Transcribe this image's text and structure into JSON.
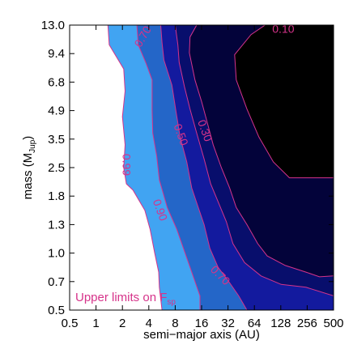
{
  "chart_data": {
    "type": "contour",
    "xlabel": "semi−major axis (AU)",
    "ylabel_main": "mass (M",
    "ylabel_sub": "Jup",
    "ylabel_end": ")",
    "x_ticks": [
      "0.5",
      "1",
      "2",
      "4",
      "8",
      "16",
      "32",
      "64",
      "128",
      "256",
      "500"
    ],
    "y_ticks": [
      "0.5",
      "0.7",
      "1.0",
      "1.3",
      "1.8",
      "2.5",
      "3.5",
      "4.9",
      "6.8",
      "9.4",
      "13.0"
    ],
    "annotation_main": "Upper limits on F",
    "annotation_sub": "sp",
    "colors": {
      "line": "#d6338a",
      "fill_099": "#41a4f2",
      "fill_090": "#2466c8",
      "fill_070": "#131a9e",
      "fill_050": "#080e6c",
      "fill_030": "#03033a",
      "fill_010": "#000000",
      "fill_low": "#ffffff"
    },
    "levels": [
      {
        "value": 0.99,
        "label": "0.99",
        "fill": "#41a4f2",
        "boundary": [
          [
            1.45,
            13.0
          ],
          [
            1.5,
            10.5
          ],
          [
            2.1,
            8.0
          ],
          [
            2.2,
            6.2
          ],
          [
            2.0,
            4.6
          ],
          [
            2.2,
            3.3
          ],
          [
            2.1,
            2.5
          ],
          [
            2.3,
            2.1
          ],
          [
            2.8,
            1.95
          ],
          [
            3.7,
            1.55
          ],
          [
            4.2,
            1.25
          ],
          [
            4.9,
            1.0
          ],
          [
            5.5,
            0.8
          ],
          [
            5.6,
            0.66
          ],
          [
            6.0,
            0.5
          ]
        ]
      },
      {
        "value": 0.9,
        "label": "0.90",
        "fill": "#2466c8",
        "boundary": [
          [
            3.1,
            13.0
          ],
          [
            3.2,
            10.5
          ],
          [
            3.8,
            8.5
          ],
          [
            4.5,
            7.0
          ],
          [
            4.5,
            4.9
          ],
          [
            4.6,
            3.8
          ],
          [
            5.2,
            2.9
          ],
          [
            5.6,
            2.2
          ],
          [
            6.8,
            1.6
          ],
          [
            8.5,
            1.25
          ],
          [
            11.0,
            1.0
          ],
          [
            13.0,
            0.8
          ],
          [
            15.5,
            0.6
          ],
          [
            15.5,
            0.5
          ]
        ]
      },
      {
        "value": 0.7,
        "label": "0.70",
        "fill": "#131a9e",
        "boundary": [
          [
            5.8,
            13.0
          ],
          [
            6.0,
            10.8
          ],
          [
            6.3,
            8.8
          ],
          [
            7.5,
            6.6
          ],
          [
            8.2,
            4.9
          ],
          [
            9.5,
            3.6
          ],
          [
            11.5,
            2.7
          ],
          [
            13.0,
            2.0
          ],
          [
            15.0,
            1.6
          ],
          [
            17.5,
            1.3
          ],
          [
            21.0,
            1.05
          ],
          [
            26.0,
            0.85
          ],
          [
            33.0,
            0.7
          ],
          [
            45.0,
            0.6
          ],
          [
            55.0,
            0.5
          ]
        ]
      },
      {
        "value": 0.5,
        "label": "0.50",
        "fill": "#080e6c",
        "boundary": [
          [
            8.0,
            13.0
          ],
          [
            8.8,
            10.5
          ],
          [
            9.2,
            8.6
          ],
          [
            10.8,
            6.5
          ],
          [
            12.5,
            5.0
          ],
          [
            14.5,
            3.8
          ],
          [
            17.5,
            2.8
          ],
          [
            21.5,
            2.1
          ],
          [
            26.0,
            1.7
          ],
          [
            31.0,
            1.35
          ],
          [
            38.0,
            1.1
          ],
          [
            52.0,
            0.9
          ],
          [
            80.0,
            0.76
          ],
          [
            130.0,
            0.68
          ],
          [
            250.0,
            0.66
          ],
          [
            500.0,
            0.6
          ]
        ]
      },
      {
        "value": 0.3,
        "label": "0.30",
        "fill": "#03033a",
        "boundary": [
          [
            14.5,
            13.0
          ],
          [
            12.5,
            11.5
          ],
          [
            12.3,
            9.5
          ],
          [
            14.0,
            7.0
          ],
          [
            16.0,
            5.5
          ],
          [
            19.5,
            4.3
          ],
          [
            23.0,
            3.3
          ],
          [
            28.0,
            2.5
          ],
          [
            34.0,
            2.0
          ],
          [
            42.0,
            1.6
          ],
          [
            55.0,
            1.3
          ],
          [
            72.0,
            1.1
          ],
          [
            95.0,
            0.97
          ],
          [
            150.0,
            0.87
          ],
          [
            250.0,
            0.8
          ],
          [
            370.0,
            0.75
          ],
          [
            500.0,
            0.76
          ]
        ]
      },
      {
        "value": 0.1,
        "label": "0.10",
        "fill": "#000000",
        "boundary": [
          [
            90.0,
            13.0
          ],
          [
            60.0,
            11.8
          ],
          [
            40.0,
            9.3
          ],
          [
            42.0,
            7.0
          ],
          [
            55.0,
            5.0
          ],
          [
            75.0,
            3.6
          ],
          [
            110.0,
            2.7
          ],
          [
            170.0,
            2.25
          ],
          [
            260.0,
            2.25
          ],
          [
            500.0,
            2.25
          ]
        ]
      }
    ]
  }
}
